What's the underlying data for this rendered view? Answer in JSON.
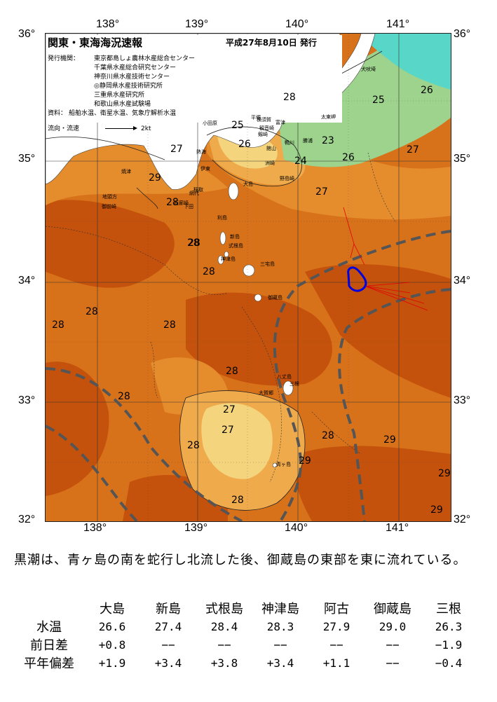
{
  "map": {
    "title": "関東・東海海況速報",
    "date_label": "平成27年8月10日 発行",
    "issuer_label": "発行機関：",
    "issuers": [
      "東京都島しょ農林水産総合センター",
      "千葉県水産総合研究センター",
      "神奈川県水産技術センター",
      "◎静岡県水産技術研究所",
      "三重県水産研究所",
      "和歌山県水産試験場"
    ],
    "data_label": "資料：",
    "data_sources": "船舶水温、衛星水温、気象庁解析水温",
    "flow_label": "流向・流速",
    "flow_scale": "2kt",
    "lon_labels": [
      "138°",
      "139°",
      "140°",
      "141°"
    ],
    "lat_labels": [
      "36°",
      "35°",
      "34°",
      "33°",
      "32°"
    ],
    "sst_labels": [
      "28",
      "25",
      "26",
      "23",
      "24",
      "25",
      "26",
      "27",
      "26",
      "27",
      "29",
      "28",
      "28",
      "28",
      "28",
      "27",
      "28",
      "28",
      "28",
      "28",
      "28",
      "27",
      "27",
      "28",
      "28",
      "29",
      "29",
      "29",
      "29",
      "28"
    ],
    "place_names": [
      "犬吠埼",
      "太東岬",
      "勝浦",
      "鴨川",
      "館山",
      "洲崎",
      "野島崎",
      "平塚",
      "横須賀",
      "観音崎",
      "富津",
      "剱崎",
      "小田原",
      "熱海",
      "伊東",
      "稲取",
      "石廊崎",
      "下田",
      "網代",
      "利島",
      "新島",
      "式根島",
      "神津島",
      "三宅島",
      "御蔵島",
      "八丈島",
      "三根",
      "大賀郷",
      "青ヶ島",
      "焼津",
      "御前崎",
      "地頭方",
      "大島"
    ],
    "contour_depths": [
      "-200",
      "-1000"
    ],
    "colors": {
      "sst_very_warm": "#c4520c",
      "sst_warm": "#d8721a",
      "sst_mid": "#e58c2c",
      "sst_light": "#efaa4c",
      "sst_pale": "#f4d47c",
      "sst_green": "#9dd38c",
      "sst_cyan": "#58d6c8",
      "land": "#ffffff",
      "kuroshio_axis": "#555555",
      "current_vectors": "#e00000",
      "drifter_track": "#0000e0"
    }
  },
  "summary": "黒潮は、青ヶ島の南を蛇行し北流した後、御蔵島の東部を東に流れている。",
  "table": {
    "headers": [
      "大島",
      "新島",
      "式根島",
      "神津島",
      "阿古",
      "御蔵島",
      "三根"
    ],
    "rows": [
      {
        "label": "水温",
        "values": [
          "26.6",
          "27.4",
          "28.4",
          "28.3",
          "27.9",
          "29.0",
          "26.3"
        ]
      },
      {
        "label": "前日差",
        "values": [
          "+0.8",
          "−−",
          "−−",
          "−−",
          "−−",
          "−−",
          "−1.9"
        ]
      },
      {
        "label": "平年偏差",
        "values": [
          "+1.9",
          "+3.4",
          "+3.8",
          "+3.4",
          "+1.1",
          "−−",
          "−0.4"
        ]
      }
    ]
  }
}
